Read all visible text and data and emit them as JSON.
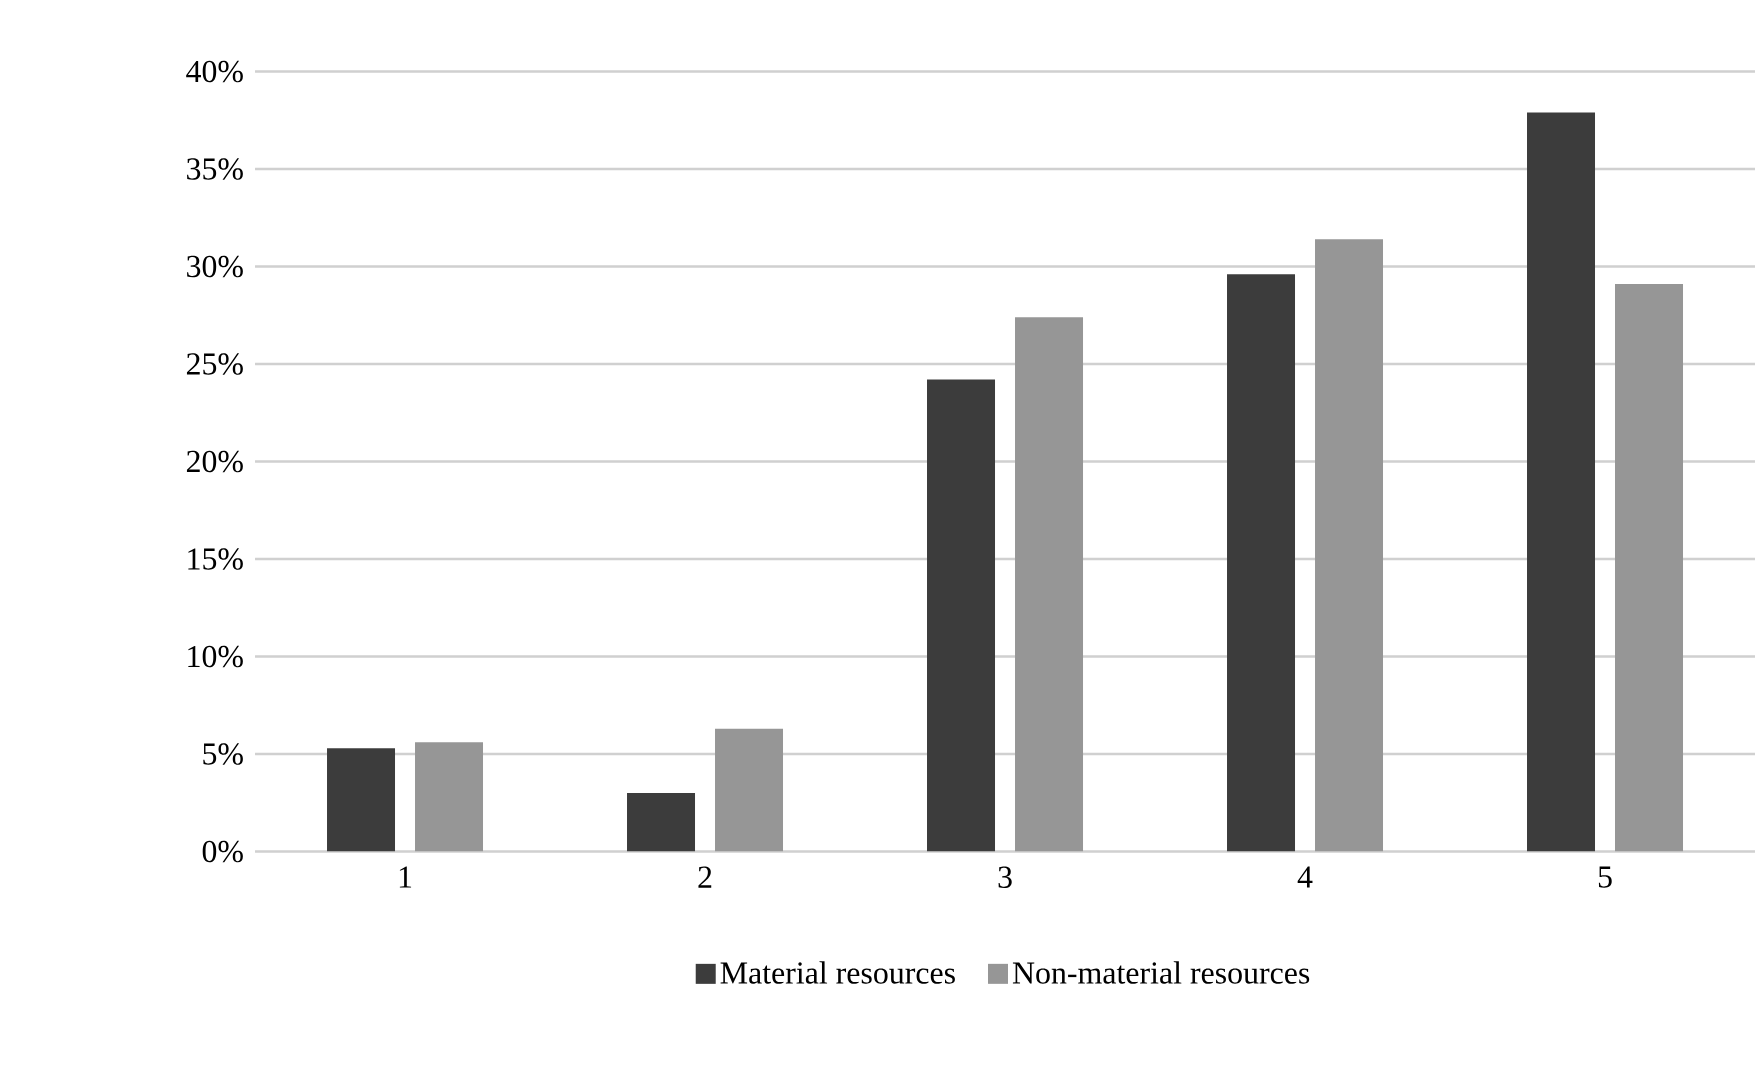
{
  "chart_data": {
    "type": "bar",
    "categories": [
      "1",
      "2",
      "3",
      "4",
      "5"
    ],
    "series": [
      {
        "name": "Material resources",
        "color": "#3c3c3c",
        "values": [
          5.3,
          3.0,
          24.2,
          29.6,
          37.9
        ]
      },
      {
        "name": "Non-material resources",
        "color": "#969696",
        "values": [
          5.6,
          6.3,
          27.4,
          31.4,
          29.1
        ]
      }
    ],
    "ylim": [
      0,
      40
    ],
    "yticks": [
      {
        "value": 0,
        "label": "0%"
      },
      {
        "value": 5,
        "label": "5%"
      },
      {
        "value": 10,
        "label": "10%"
      },
      {
        "value": 15,
        "label": "15%"
      },
      {
        "value": 20,
        "label": "20%"
      },
      {
        "value": 25,
        "label": "25%"
      },
      {
        "value": 30,
        "label": "30%"
      },
      {
        "value": 35,
        "label": "35%"
      },
      {
        "value": 40,
        "label": "40%"
      }
    ],
    "grid": "y",
    "legend": "bottom"
  }
}
